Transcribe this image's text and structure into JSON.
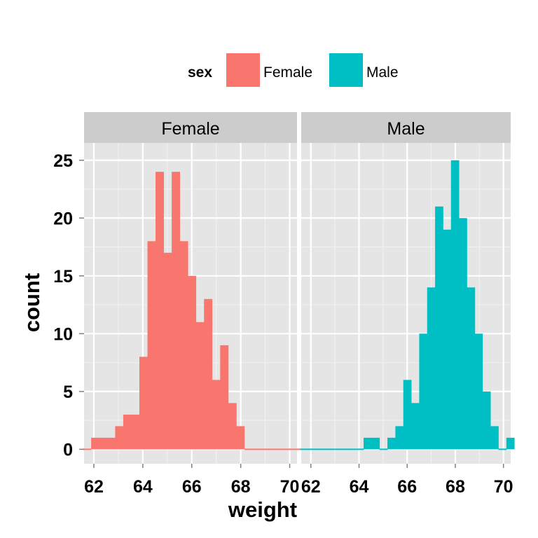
{
  "chart_data": {
    "type": "bar",
    "xlabel": "weight",
    "ylabel": "count",
    "xlim": [
      61.6,
      70.3
    ],
    "ylim": [
      -1.25,
      26.5
    ],
    "xticks": [
      "62",
      "64",
      "66",
      "68",
      "70"
    ],
    "yticks": [
      "0",
      "5",
      "10",
      "15",
      "20",
      "25"
    ],
    "legend": {
      "title": "sex",
      "position": "top",
      "entries": [
        {
          "label": "Female",
          "color": "#F8766D"
        },
        {
          "label": "Male",
          "color": "#00BFC4"
        }
      ]
    },
    "grid": true,
    "panel_background": "#E5E5E5",
    "strip_background": "#CCCCCC",
    "bin_edges": [
      61.56,
      61.89,
      62.21,
      62.54,
      62.87,
      63.2,
      63.53,
      63.86,
      64.19,
      64.52,
      64.85,
      65.18,
      65.51,
      65.84,
      66.17,
      66.5,
      66.83,
      67.16,
      67.49,
      67.82,
      68.15,
      68.48,
      68.81,
      69.13,
      69.46,
      69.79,
      70.12,
      70.45
    ],
    "panels": [
      {
        "strip": "Female",
        "series": "Female",
        "color": "#F8766D",
        "counts": [
          0,
          1,
          1,
          1,
          2,
          3,
          3,
          8,
          18,
          24,
          17,
          24,
          18,
          15,
          11,
          13,
          6,
          9,
          4,
          2,
          0,
          0,
          0,
          0,
          0,
          0,
          0
        ]
      },
      {
        "strip": "Male",
        "series": "Male",
        "color": "#00BFC4",
        "counts": [
          0,
          0,
          0,
          0,
          0,
          0,
          0,
          0,
          1,
          1,
          0,
          1,
          2,
          6,
          4,
          10,
          14,
          21,
          19,
          25,
          20,
          14,
          10,
          5,
          2,
          0,
          1
        ]
      }
    ]
  }
}
